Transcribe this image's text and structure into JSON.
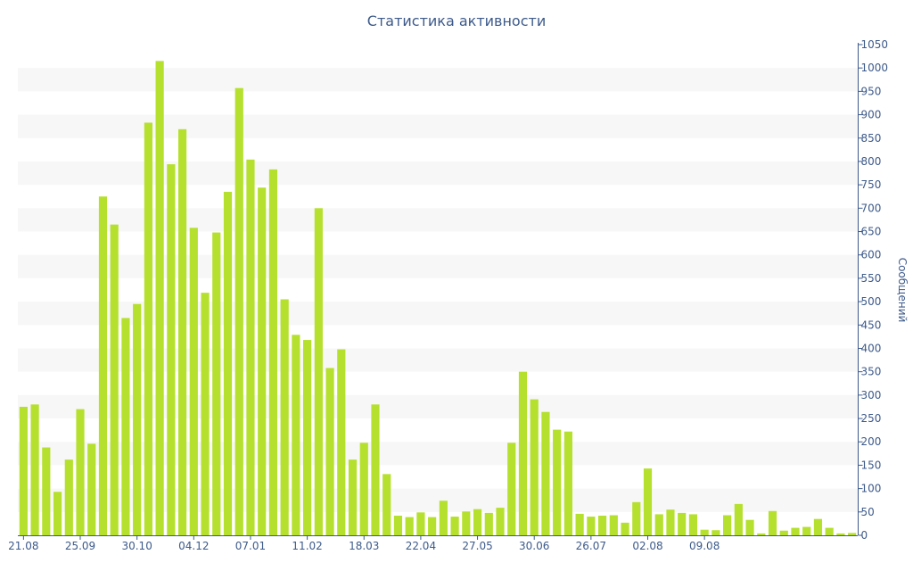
{
  "chart_data": {
    "type": "bar",
    "title": "Статистика активности",
    "ylabel": "Сообщений",
    "xlabel": "",
    "ylim": [
      0,
      1050
    ],
    "y_ticks": [
      0,
      50,
      100,
      150,
      200,
      250,
      300,
      350,
      400,
      450,
      500,
      550,
      600,
      650,
      700,
      750,
      800,
      850,
      900,
      950,
      1000,
      1050
    ],
    "y_axis_side": "right",
    "grid": "alternating-horizontal-bands",
    "bar_color": "#b5e02d",
    "band_color": "#f7f7f7",
    "text_color": "#3d5a8a",
    "x_tick_labels": [
      {
        "index": 0,
        "label": "21.08"
      },
      {
        "index": 5,
        "label": "25.09"
      },
      {
        "index": 10,
        "label": "30.10"
      },
      {
        "index": 15,
        "label": "04.12"
      },
      {
        "index": 20,
        "label": "07.01"
      },
      {
        "index": 25,
        "label": "11.02"
      },
      {
        "index": 30,
        "label": "18.03"
      },
      {
        "index": 35,
        "label": "22.04"
      },
      {
        "index": 40,
        "label": "27.05"
      },
      {
        "index": 45,
        "label": "30.06"
      },
      {
        "index": 50,
        "label": "26.07"
      },
      {
        "index": 55,
        "label": "02.08"
      },
      {
        "index": 60,
        "label": "09.08"
      }
    ],
    "values": [
      275,
      280,
      188,
      93,
      162,
      270,
      196,
      725,
      665,
      465,
      495,
      883,
      1015,
      794,
      869,
      658,
      519,
      648,
      735,
      957,
      804,
      744,
      783,
      505,
      429,
      418,
      700,
      358,
      398,
      162,
      198,
      280,
      131,
      42,
      39,
      49,
      39,
      74,
      40,
      51,
      56,
      48,
      59,
      198,
      350,
      291,
      264,
      226,
      222,
      46,
      40,
      42,
      43,
      27,
      71,
      143,
      45,
      55,
      48,
      45,
      12,
      11,
      43,
      67,
      33,
      4,
      52,
      10,
      16,
      18,
      35,
      16,
      4,
      5
    ]
  }
}
